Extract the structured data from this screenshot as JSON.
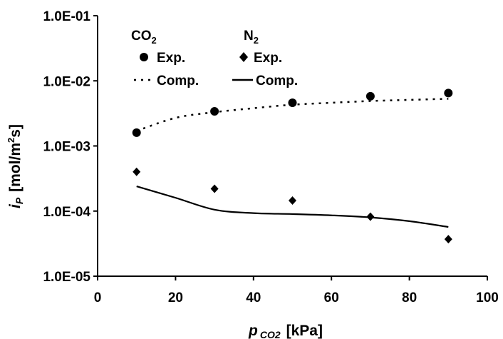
{
  "chart_data": {
    "type": "scatter",
    "x_axis": {
      "label_main": "p",
      "label_sub": "CO2",
      "label_unit": "[kPa]",
      "range": [
        0,
        100
      ],
      "ticks": [
        "0",
        "20",
        "40",
        "60",
        "80",
        "100"
      ],
      "tick_values": [
        0,
        20,
        40,
        60,
        80,
        100
      ]
    },
    "y_axis": {
      "label_main": "i",
      "label_sub": "P",
      "label_unit": "[mol/m",
      "label_sup": "2",
      "label_tail": "s]",
      "scale": "log",
      "range": [
        1e-05,
        0.1
      ],
      "ticks": [
        "1.0E-01",
        "1.0E-02",
        "1.0E-03",
        "1.0E-04",
        "1.0E-05"
      ],
      "tick_values": [
        0.1,
        0.01,
        0.001,
        0.0001,
        1e-05
      ]
    },
    "grid": false,
    "legend": {
      "placement": "top-left",
      "groups": [
        {
          "header_main": "CO",
          "header_sub": "2",
          "exp_label": "Exp.",
          "comp_label": "Comp."
        },
        {
          "header_main": "N",
          "header_sub": "2",
          "exp_label": "Exp.",
          "comp_label": "Comp."
        }
      ]
    },
    "series": [
      {
        "name": "CO2 Exp.",
        "kind": "markers",
        "marker": "circle",
        "x": [
          10,
          30,
          50,
          70,
          90
        ],
        "y": [
          0.0016,
          0.0034,
          0.0046,
          0.0058,
          0.0065
        ]
      },
      {
        "name": "CO2 Comp.",
        "kind": "line",
        "line_style": "dotted",
        "x": [
          10,
          20,
          30,
          40,
          50,
          60,
          70,
          80,
          90
        ],
        "y": [
          0.0017,
          0.0027,
          0.0033,
          0.0038,
          0.0043,
          0.0046,
          0.0049,
          0.0051,
          0.0053
        ]
      },
      {
        "name": "N2 Exp.",
        "kind": "markers",
        "marker": "diamond",
        "x": [
          10,
          30,
          50,
          70,
          90
        ],
        "y": [
          0.0004,
          0.00022,
          0.000145,
          8.2e-05,
          3.7e-05
        ]
      },
      {
        "name": "N2 Comp.",
        "kind": "line",
        "line_style": "solid",
        "x": [
          10,
          20,
          30,
          40,
          50,
          60,
          70,
          80,
          90
        ],
        "y": [
          0.00024,
          0.00016,
          0.000105,
          9.3e-05,
          9e-05,
          8.6e-05,
          8e-05,
          7e-05,
          5.7e-05
        ]
      }
    ]
  }
}
